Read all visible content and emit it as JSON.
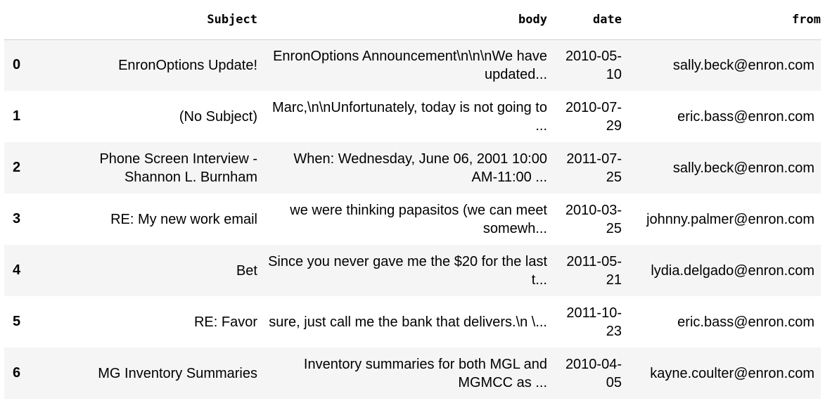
{
  "table": {
    "columns": [
      "",
      "Subject",
      "body",
      "date",
      "from"
    ],
    "rows": [
      {
        "index": "0",
        "subject": "EnronOptions Update!",
        "body": "EnronOptions Announcement\\n\\n\\nWe have updated...",
        "date": "2010-05-10",
        "from": "sally.beck@enron.com"
      },
      {
        "index": "1",
        "subject": "(No Subject)",
        "body": "Marc,\\n\\nUnfortunately, today is not going to ...",
        "date": "2010-07-29",
        "from": "eric.bass@enron.com"
      },
      {
        "index": "2",
        "subject": "Phone Screen Interview - Shannon L. Burnham",
        "body": "When: Wednesday, June 06, 2001 10:00 AM-11:00 ...",
        "date": "2011-07-25",
        "from": "sally.beck@enron.com"
      },
      {
        "index": "3",
        "subject": "RE: My new work email",
        "body": "we were thinking papasitos (we can meet somewh...",
        "date": "2010-03-25",
        "from": "johnny.palmer@enron.com"
      },
      {
        "index": "4",
        "subject": "Bet",
        "body": "Since you never gave me the $20 for the last t...",
        "date": "2011-05-21",
        "from": "lydia.delgado@enron.com"
      },
      {
        "index": "5",
        "subject": "RE: Favor",
        "body": "sure, just call me the bank that delivers.\\n \\...",
        "date": "2011-10-23",
        "from": "eric.bass@enron.com"
      },
      {
        "index": "6",
        "subject": "MG Inventory Summaries",
        "body": "Inventory summaries for both MGL and MGMCC as ...",
        "date": "2010-04-05",
        "from": "kayne.coulter@enron.com"
      }
    ]
  }
}
